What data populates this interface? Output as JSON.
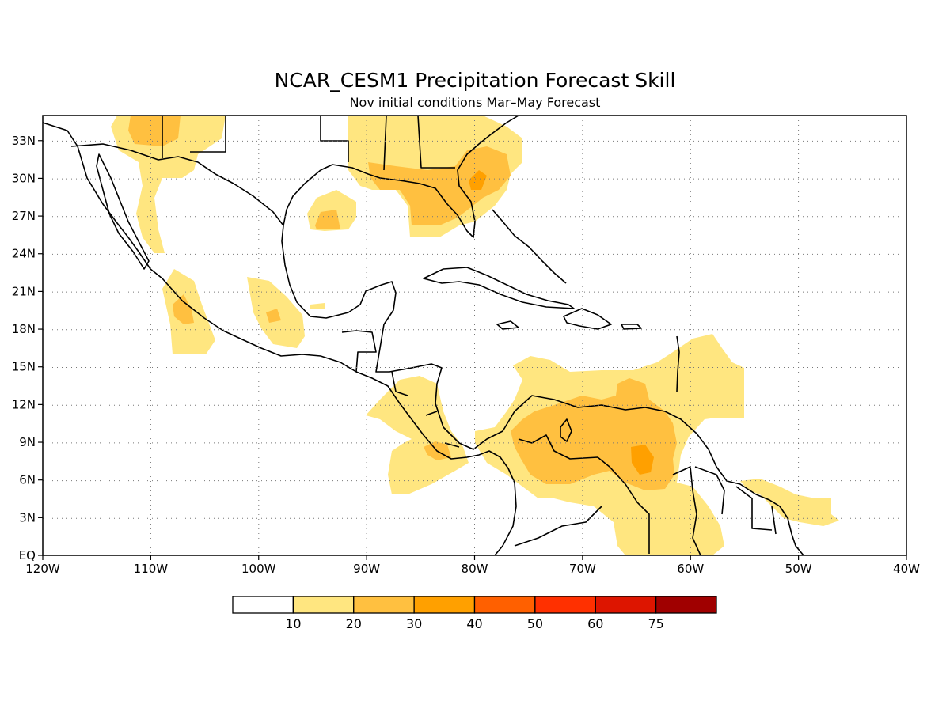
{
  "map": {
    "title": "NCAR_CESM1 Precipitation Forecast Skill",
    "subtitle": "Nov initial conditions  Mar–May Forecast",
    "x_ticks": [
      "120W",
      "110W",
      "100W",
      "90W",
      "80W",
      "70W",
      "60W",
      "50W",
      "40W"
    ],
    "y_ticks": [
      "33N",
      "30N",
      "27N",
      "24N",
      "21N",
      "18N",
      "15N",
      "12N",
      "9N",
      "6N",
      "3N",
      "EQ"
    ],
    "lon_range": [
      -120,
      -40
    ],
    "lat_range": [
      0,
      35
    ],
    "grid": true
  },
  "colorbar": {
    "labels": [
      "10",
      "20",
      "30",
      "40",
      "50",
      "60",
      "75"
    ],
    "colors": [
      "#ffffff",
      "#ffe680",
      "#ffc040",
      "#ffa000",
      "#ff6000",
      "#ff3000",
      "#dd1500",
      "#a00000"
    ]
  }
}
